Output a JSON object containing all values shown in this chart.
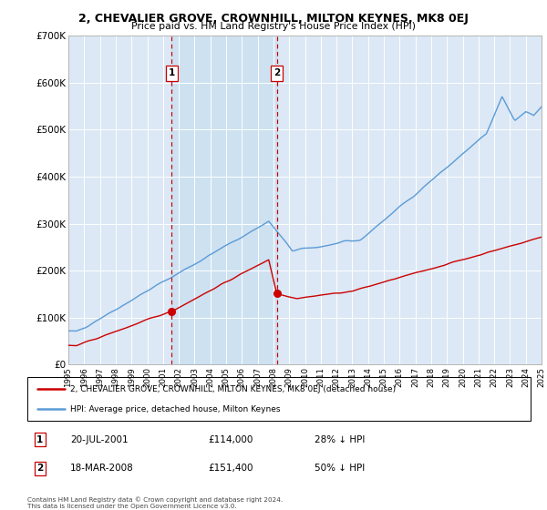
{
  "title": "2, CHEVALIER GROVE, CROWNHILL, MILTON KEYNES, MK8 0EJ",
  "subtitle": "Price paid vs. HM Land Registry's House Price Index (HPI)",
  "ylim": [
    0,
    700000
  ],
  "yticks": [
    0,
    100000,
    200000,
    300000,
    400000,
    500000,
    600000,
    700000
  ],
  "ytick_labels": [
    "£0",
    "£100K",
    "£200K",
    "£300K",
    "£400K",
    "£500K",
    "£600K",
    "£700K"
  ],
  "bg_color": "#dce8f5",
  "grid_color": "#ffffff",
  "sale1_date": 2001.55,
  "sale1_price": 114000,
  "sale1_label": "1",
  "sale2_date": 2008.21,
  "sale2_price": 151400,
  "sale2_label": "2",
  "legend_line1": "2, CHEVALIER GROVE, CROWNHILL, MILTON KEYNES, MK8 0EJ (detached house)",
  "legend_line2": "HPI: Average price, detached house, Milton Keynes",
  "table_row1": [
    "1",
    "20-JUL-2001",
    "£114,000",
    "28% ↓ HPI"
  ],
  "table_row2": [
    "2",
    "18-MAR-2008",
    "£151,400",
    "50% ↓ HPI"
  ],
  "footnote": "Contains HM Land Registry data © Crown copyright and database right 2024.\nThis data is licensed under the Open Government Licence v3.0.",
  "hpi_color": "#5b9bd5",
  "price_color": "#cc0000",
  "vline_color": "#cc0000",
  "shade_color": "#c8dff0"
}
